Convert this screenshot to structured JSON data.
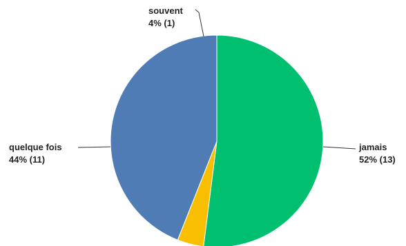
{
  "chart_data": {
    "type": "pie",
    "slices": [
      {
        "name": "jamais",
        "value": 13,
        "percent_label": "52% (13)",
        "color": "#00bf6f"
      },
      {
        "name": "souvent",
        "value": 1,
        "percent_label": "4% (1)",
        "color": "#f9be00"
      },
      {
        "name": "quelque fois",
        "value": 11,
        "percent_label": "44% (11)",
        "color": "#507cb6"
      }
    ],
    "start_angle": "top",
    "direction": "clockwise"
  }
}
